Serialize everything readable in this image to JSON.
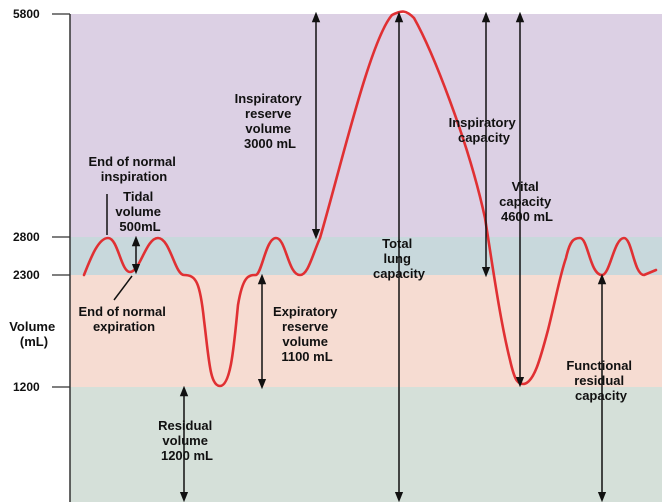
{
  "axis": {
    "ylabel": [
      "Volume",
      "(mL)"
    ],
    "ticks": [
      "5800",
      "2800",
      "2300",
      "1200"
    ]
  },
  "zones": {
    "irv_color": "#dcd0e4",
    "tidal_color": "#c8d8dc",
    "erv_color": "#f6dcd2",
    "rv_color": "#d5e0d9"
  },
  "curve_color": "#e03033",
  "labels": {
    "end_inspiration": [
      "End of normal",
      "inspiration"
    ],
    "tidal": [
      "Tidal",
      "volume",
      "500mL"
    ],
    "end_expiration": [
      "End of normal",
      "expiration"
    ],
    "irv": [
      "Inspiratory",
      "reserve",
      "volume",
      "3000 mL"
    ],
    "erv": [
      "Expiratory",
      "reserve",
      "volume",
      "1100 mL"
    ],
    "rv": [
      "Residual",
      "volume",
      "1200 mL"
    ],
    "tlc": [
      "Total",
      "lung",
      "capacity"
    ],
    "ic": [
      "Inspiratory",
      "capacity"
    ],
    "vc": [
      "Vital",
      "capacity",
      "4600 mL"
    ],
    "frc": [
      "Functional",
      "residual",
      "capacity"
    ]
  }
}
